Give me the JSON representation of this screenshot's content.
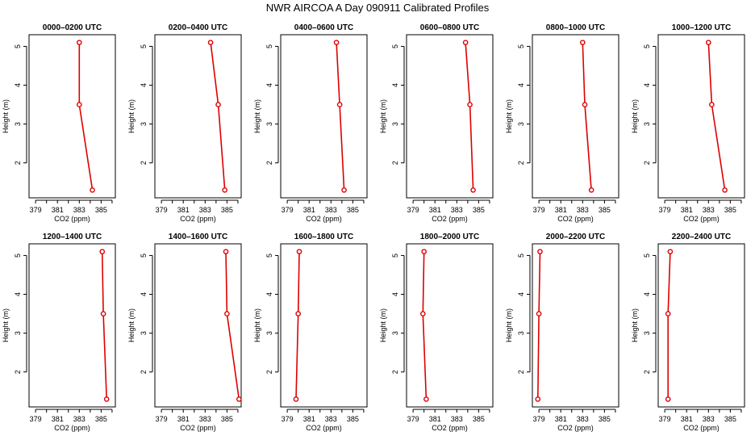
{
  "figure": {
    "title": "NWR AIRCOA A  Day 090911  Calibrated Profiles"
  },
  "colors": {
    "series": "#dd0000",
    "axis": "#000000",
    "background": "#ffffff"
  },
  "chart_data": [
    {
      "type": "line",
      "title": "0000–0200 UTC",
      "xlabel": "CO2 (ppm)",
      "ylabel": "Height (m)",
      "xlim": [
        378.4,
        386.3
      ],
      "ylim": [
        1.1,
        5.3
      ],
      "xticks": [
        379,
        381,
        383,
        385
      ],
      "yticks": [
        2,
        3,
        4,
        5
      ],
      "grid": false,
      "series": [
        {
          "x": [
            384.2,
            383.0,
            383.0
          ],
          "y": [
            1.3,
            3.5,
            5.1
          ]
        }
      ]
    },
    {
      "type": "line",
      "title": "0200–0400 UTC",
      "xlabel": "CO2 (ppm)",
      "ylabel": "Height (m)",
      "xlim": [
        378.4,
        386.3
      ],
      "ylim": [
        1.1,
        5.3
      ],
      "xticks": [
        379,
        381,
        383,
        385
      ],
      "yticks": [
        2,
        3,
        4,
        5
      ],
      "grid": false,
      "series": [
        {
          "x": [
            384.8,
            384.2,
            383.5
          ],
          "y": [
            1.3,
            3.5,
            5.1
          ]
        }
      ]
    },
    {
      "type": "line",
      "title": "0400–0600 UTC",
      "xlabel": "CO2 (ppm)",
      "ylabel": "Height (m)",
      "xlim": [
        378.4,
        386.3
      ],
      "ylim": [
        1.1,
        5.3
      ],
      "xticks": [
        379,
        381,
        383,
        385
      ],
      "yticks": [
        2,
        3,
        4,
        5
      ],
      "grid": false,
      "series": [
        {
          "x": [
            384.2,
            383.8,
            383.5
          ],
          "y": [
            1.3,
            3.5,
            5.1
          ]
        }
      ]
    },
    {
      "type": "line",
      "title": "0600–0800 UTC",
      "xlabel": "CO2 (ppm)",
      "ylabel": "Height (m)",
      "xlim": [
        378.4,
        386.3
      ],
      "ylim": [
        1.1,
        5.3
      ],
      "xticks": [
        379,
        381,
        383,
        385
      ],
      "yticks": [
        2,
        3,
        4,
        5
      ],
      "grid": false,
      "series": [
        {
          "x": [
            384.5,
            384.2,
            383.8
          ],
          "y": [
            1.3,
            3.5,
            5.1
          ]
        }
      ]
    },
    {
      "type": "line",
      "title": "0800–1000 UTC",
      "xlabel": "CO2 (ppm)",
      "ylabel": "Height (m)",
      "xlim": [
        378.4,
        386.3
      ],
      "ylim": [
        1.1,
        5.3
      ],
      "xticks": [
        379,
        381,
        383,
        385
      ],
      "yticks": [
        2,
        3,
        4,
        5
      ],
      "grid": false,
      "series": [
        {
          "x": [
            383.8,
            383.2,
            383.0
          ],
          "y": [
            1.3,
            3.5,
            5.1
          ]
        }
      ]
    },
    {
      "type": "line",
      "title": "1000–1200 UTC",
      "xlabel": "CO2 (ppm)",
      "ylabel": "Height (m)",
      "xlim": [
        378.4,
        386.3
      ],
      "ylim": [
        1.1,
        5.3
      ],
      "xticks": [
        379,
        381,
        383,
        385
      ],
      "yticks": [
        2,
        3,
        4,
        5
      ],
      "grid": false,
      "series": [
        {
          "x": [
            384.5,
            383.3,
            383.0
          ],
          "y": [
            1.3,
            3.5,
            5.1
          ]
        }
      ]
    },
    {
      "type": "line",
      "title": "1200–1400 UTC",
      "xlabel": "CO2 (ppm)",
      "ylabel": "Height (m)",
      "xlim": [
        378.4,
        386.3
      ],
      "ylim": [
        1.1,
        5.3
      ],
      "xticks": [
        379,
        381,
        383,
        385
      ],
      "yticks": [
        2,
        3,
        4,
        5
      ],
      "grid": false,
      "series": [
        {
          "x": [
            385.5,
            385.2,
            385.1
          ],
          "y": [
            1.3,
            3.5,
            5.1
          ]
        }
      ]
    },
    {
      "type": "line",
      "title": "1400–1600 UTC",
      "xlabel": "CO2 (ppm)",
      "ylabel": "Height (m)",
      "xlim": [
        378.4,
        386.3
      ],
      "ylim": [
        1.1,
        5.3
      ],
      "xticks": [
        379,
        381,
        383,
        385
      ],
      "yticks": [
        2,
        3,
        4,
        5
      ],
      "grid": false,
      "series": [
        {
          "x": [
            386.1,
            385.0,
            384.9
          ],
          "y": [
            1.3,
            3.5,
            5.1
          ]
        }
      ]
    },
    {
      "type": "line",
      "title": "1600–1800 UTC",
      "xlabel": "CO2 (ppm)",
      "ylabel": "Height (m)",
      "xlim": [
        378.4,
        386.3
      ],
      "ylim": [
        1.1,
        5.3
      ],
      "xticks": [
        379,
        381,
        383,
        385
      ],
      "yticks": [
        2,
        3,
        4,
        5
      ],
      "grid": false,
      "series": [
        {
          "x": [
            379.8,
            380.0,
            380.1
          ],
          "y": [
            1.3,
            3.5,
            5.1
          ]
        }
      ]
    },
    {
      "type": "line",
      "title": "1800–2000 UTC",
      "xlabel": "CO2 (ppm)",
      "ylabel": "Height (m)",
      "xlim": [
        378.4,
        386.3
      ],
      "ylim": [
        1.1,
        5.3
      ],
      "xticks": [
        379,
        381,
        383,
        385
      ],
      "yticks": [
        2,
        3,
        4,
        5
      ],
      "grid": false,
      "series": [
        {
          "x": [
            380.2,
            379.9,
            380.0
          ],
          "y": [
            1.3,
            3.5,
            5.1
          ]
        }
      ]
    },
    {
      "type": "line",
      "title": "2000–2200 UTC",
      "xlabel": "CO2 (ppm)",
      "ylabel": "Height (m)",
      "xlim": [
        378.4,
        386.3
      ],
      "ylim": [
        1.1,
        5.3
      ],
      "xticks": [
        379,
        381,
        383,
        385
      ],
      "yticks": [
        2,
        3,
        4,
        5
      ],
      "grid": false,
      "series": [
        {
          "x": [
            378.9,
            379.0,
            379.1
          ],
          "y": [
            1.3,
            3.5,
            5.1
          ]
        }
      ]
    },
    {
      "type": "line",
      "title": "2200–2400 UTC",
      "xlabel": "CO2 (ppm)",
      "ylabel": "Height (m)",
      "xlim": [
        378.4,
        386.3
      ],
      "ylim": [
        1.1,
        5.3
      ],
      "xticks": [
        379,
        381,
        383,
        385
      ],
      "yticks": [
        2,
        3,
        4,
        5
      ],
      "grid": false,
      "series": [
        {
          "x": [
            379.3,
            379.3,
            379.5
          ],
          "y": [
            1.3,
            3.5,
            5.1
          ]
        }
      ]
    }
  ]
}
